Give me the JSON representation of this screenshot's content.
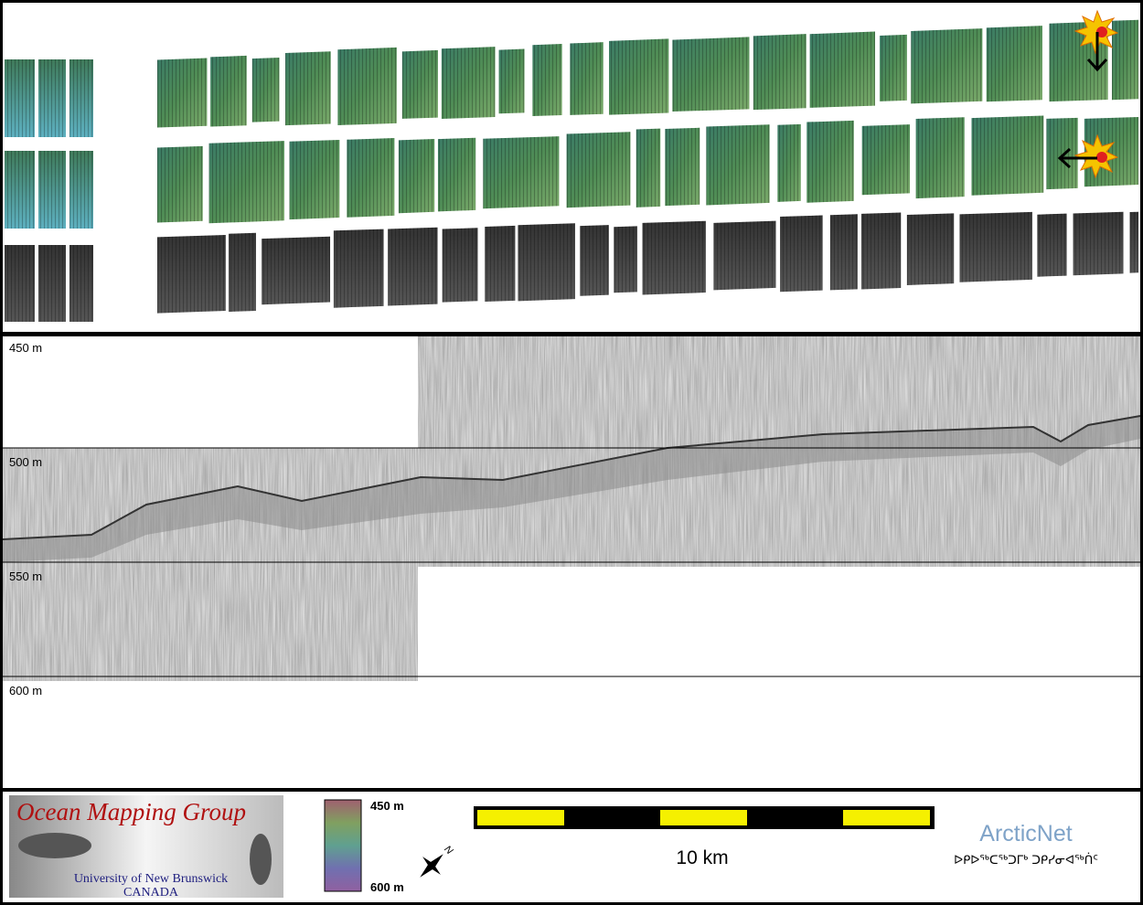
{
  "profile": {
    "depth_labels": [
      "450 m",
      "500 m",
      "550 m",
      "600 m"
    ]
  },
  "legend": {
    "logo": {
      "title": "Ocean Mapping Group",
      "subtitle": "University of New Brunswick",
      "country": "CANADA"
    },
    "color_scale": {
      "top": "450 m",
      "bottom": "600 m"
    },
    "scale_bar": {
      "label": "10 km"
    },
    "partner": {
      "name": "ArcticNet",
      "name_inuktitut": "ᐅᑭᐅᖅᑕᖅᑐᒥᒃ ᑐᑭᓯᓂᐊᖅᑏᑦ"
    }
  }
}
